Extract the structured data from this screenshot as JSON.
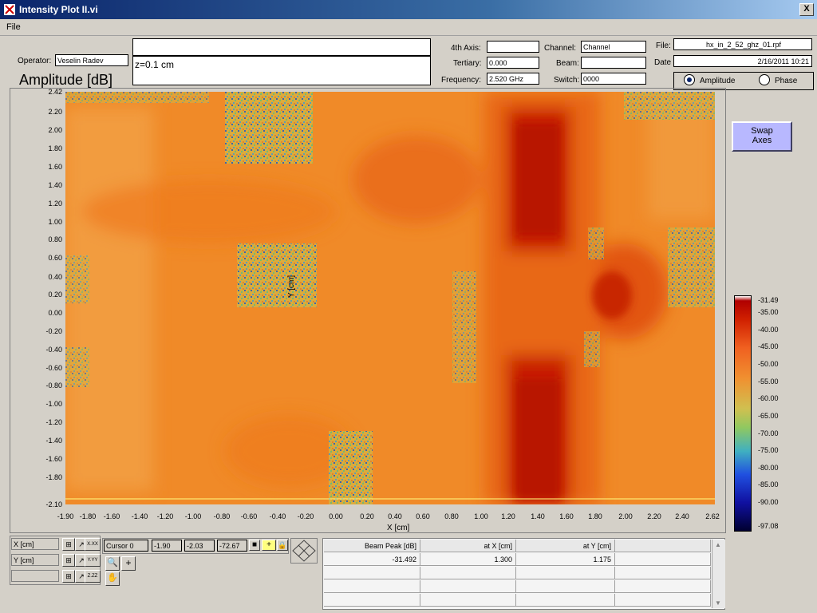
{
  "window": {
    "title": "Intensity Plot II.vi",
    "close_glyph": "X"
  },
  "menu": {
    "file": "File"
  },
  "header": {
    "operator_label": "Operator:",
    "operator_value": "Veselin Radev",
    "comment_top": "",
    "comment_text": "z=0.1 cm",
    "fourth_axis_label": "4th Axis:",
    "fourth_axis_value": "",
    "tertiary_label": "Tertiary:",
    "tertiary_value": "0.000",
    "frequency_label": "Frequency:",
    "frequency_value": "2.520 GHz",
    "channel_label": "Channel:",
    "channel_value": "Channel",
    "beam_label": "Beam:",
    "beam_value": "",
    "switch_label": "Switch:",
    "switch_value": "0000",
    "file_label": "File:",
    "file_value": "hx_in_2_52_ghz_01.rpf",
    "date_label": "Date",
    "date_value": "2/16/2011 10:21",
    "amplitude_radio": "Amplitude",
    "phase_radio": "Phase",
    "selected_mode": "Amplitude"
  },
  "plot": {
    "title": "Amplitude [dB]",
    "xlabel": "X  [cm]",
    "ylabel": "Y  [cm]",
    "x_ticks": [
      "-1.90",
      "-1.80",
      "-1.60",
      "-1.40",
      "-1.20",
      "-1.00",
      "-0.80",
      "-0.60",
      "-0.40",
      "-0.20",
      "0.00",
      "0.20",
      "0.40",
      "0.60",
      "0.80",
      "1.00",
      "1.20",
      "1.40",
      "1.60",
      "1.80",
      "2.00",
      "2.20",
      "2.40",
      "2.62"
    ],
    "y_ticks": [
      "2.42",
      "2.20",
      "2.00",
      "1.80",
      "1.60",
      "1.40",
      "1.20",
      "1.00",
      "0.80",
      "0.60",
      "0.40",
      "0.20",
      "0.00",
      "-0.20",
      "-0.40",
      "-0.60",
      "-0.80",
      "-1.00",
      "-1.20",
      "-1.40",
      "-1.60",
      "-1.80",
      "-2.10"
    ],
    "colorbar_ticks": [
      "-31.49",
      "-35.00",
      "-40.00",
      "-45.00",
      "-50.00",
      "-55.00",
      "-60.00",
      "-65.00",
      "-70.00",
      "-75.00",
      "-80.00",
      "-85.00",
      "-90.00",
      "-97.08"
    ]
  },
  "swap_button": {
    "line1": "Swap",
    "line2": "Axes"
  },
  "cursor_panel": {
    "x_axis_label": "X  [cm]",
    "y_axis_label": "Y  [cm]",
    "x_format_glyph": "X.XX",
    "y_format_glyph": "Y.YY",
    "z_format_glyph": "Z.ZZ",
    "cursor_name": "Cursor 0",
    "cursor_x": "-1.90",
    "cursor_y": "-2.03",
    "cursor_z": "-72.67"
  },
  "table": {
    "headers": [
      "Beam Peak [dB]",
      "at X  [cm]",
      "at Y  [cm]"
    ],
    "rows": [
      [
        "-31.492",
        "1.300",
        "1.175"
      ],
      [
        "",
        "",
        ""
      ],
      [
        "",
        "",
        ""
      ],
      [
        "",
        "",
        ""
      ]
    ]
  },
  "colors": {
    "plot_background": "#f08a28",
    "hot": "#c81e00",
    "swap_button": "#b8b8ff"
  }
}
